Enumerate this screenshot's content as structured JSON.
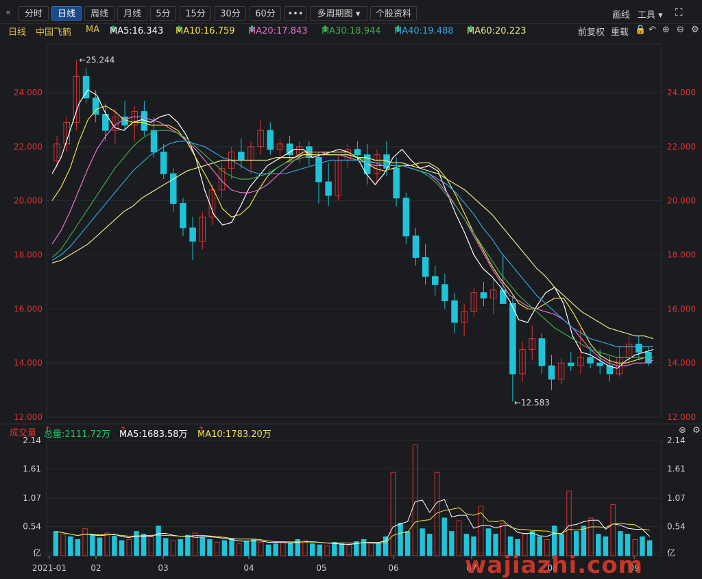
{
  "toolbar": {
    "back_icon": "double-left-chevron",
    "tabs": [
      "分时",
      "日线",
      "周线",
      "月线",
      "5分",
      "15分",
      "30分",
      "60分"
    ],
    "active_tab": "日线",
    "more": "•••",
    "multi_period": "多周期图",
    "stock_info": "个股资料",
    "draw_line": "画线",
    "tools": "工具",
    "fullscreen_icon": "expand-icon"
  },
  "info": {
    "period": "日线",
    "stock_name": "中国飞鹤",
    "ma_label": "MA",
    "ma5": "MA5:16.343",
    "ma10": "MA10:16.759",
    "ma20": "MA20:17.843",
    "ma30": "MA30:18.944",
    "ma40": "MA40:19.488",
    "ma60": "MA60:20.223",
    "adjust": "前复权",
    "overlay": "重载"
  },
  "volume_info": {
    "label": "成交量",
    "total": "总量:2111.72万",
    "ma5": "MA5:1683.58万",
    "ma10": "MA10:1783.20万"
  },
  "colors": {
    "up": "#e0302f",
    "down": "#1fc4d8",
    "ma5": "#ffffff",
    "ma10": "#f5e14a",
    "ma20": "#ee6fd2",
    "ma30": "#3fa84a",
    "ma40": "#2ea6e0",
    "ma60": "#e9e68c",
    "axis_text": "#e03030",
    "watermark": "#e23b2a"
  },
  "watermark": "wajiazhi.com",
  "chart_data": [
    {
      "type": "candlestick",
      "ylim": [
        12,
        25.8
      ],
      "y_ticks": [
        "24.000",
        "22.000",
        "20.000",
        "18.000",
        "16.000",
        "14.000",
        "12.000"
      ],
      "high_label": "25.244",
      "low_label": "12.583",
      "series": [
        {
          "name": "MA5",
          "values": [
            21.0,
            21.6,
            22.6,
            23.6,
            24.1,
            23.9,
            23.2,
            22.7,
            22.6,
            22.9,
            23.0,
            22.9,
            23.1,
            23.2,
            22.9,
            22.4,
            21.6,
            20.4,
            19.5,
            19.1,
            19.2,
            19.8,
            20.5,
            20.9,
            21.3,
            21.5,
            21.7,
            21.9,
            21.9,
            21.6,
            21.7,
            21.8,
            21.9,
            21.8,
            21.6,
            21.0,
            20.6,
            21.0,
            21.6,
            21.9,
            21.5,
            21.2,
            21.3,
            21.1,
            20.3,
            19.5,
            18.8,
            18.0,
            17.5,
            17.2,
            16.8,
            16.3,
            15.6,
            15.5,
            16.1,
            16.6,
            16.8,
            16.2,
            15.0,
            14.4,
            14.3,
            14.1,
            13.9,
            13.8,
            14.1,
            14.3,
            14.4,
            14.5
          ]
        },
        {
          "name": "MA10",
          "values": [
            20.0,
            20.5,
            21.2,
            22.2,
            23.0,
            23.4,
            23.5,
            23.3,
            23.0,
            22.9,
            22.9,
            22.8,
            22.8,
            22.8,
            22.6,
            22.2,
            21.6,
            21.0,
            20.4,
            19.7,
            19.4,
            19.5,
            19.8,
            20.4,
            20.9,
            21.2,
            21.4,
            21.6,
            21.8,
            21.8,
            21.8,
            21.8,
            21.8,
            21.8,
            21.6,
            21.4,
            21.2,
            21.1,
            21.2,
            21.3,
            21.3,
            21.4,
            21.4,
            21.2,
            20.8,
            20.2,
            19.5,
            18.8,
            18.2,
            17.6,
            17.1,
            16.7,
            16.2,
            16.0,
            16.0,
            16.2,
            16.4,
            16.4,
            15.9,
            15.3,
            14.7,
            14.3,
            14.1,
            14.0,
            14.0,
            14.1,
            14.2,
            14.2
          ]
        },
        {
          "name": "MA20",
          "values": [
            18.4,
            18.9,
            19.6,
            20.4,
            21.2,
            21.9,
            22.4,
            22.8,
            23.0,
            23.1,
            23.1,
            23.0,
            22.9,
            22.7,
            22.5,
            22.2,
            21.9,
            21.5,
            21.1,
            20.7,
            20.4,
            20.3,
            20.3,
            20.4,
            20.6,
            20.9,
            21.2,
            21.5,
            21.7,
            21.8,
            21.8,
            21.7,
            21.7,
            21.6,
            21.5,
            21.4,
            21.3,
            21.3,
            21.3,
            21.3,
            21.2,
            21.1,
            21.0,
            20.7,
            20.3,
            19.8,
            19.3,
            18.7,
            18.1,
            17.5,
            17.0,
            16.5,
            16.3,
            16.1,
            16.0,
            15.9,
            15.8,
            15.6,
            15.3,
            14.9,
            14.5,
            14.2,
            14.0,
            13.9,
            13.9,
            14.0,
            14.0,
            14.1
          ]
        },
        {
          "name": "MA30",
          "values": [
            17.9,
            18.2,
            18.7,
            19.2,
            19.7,
            20.2,
            20.7,
            21.2,
            21.6,
            22.0,
            22.3,
            22.5,
            22.6,
            22.6,
            22.5,
            22.3,
            22.0,
            21.7,
            21.4,
            21.1,
            20.9,
            20.8,
            20.8,
            20.9,
            21.0,
            21.2,
            21.4,
            21.5,
            21.6,
            21.7,
            21.7,
            21.7,
            21.7,
            21.7,
            21.6,
            21.5,
            21.4,
            21.4,
            21.3,
            21.3,
            21.2,
            21.1,
            20.9,
            20.6,
            20.2,
            19.8,
            19.3,
            18.8,
            18.3,
            17.8,
            17.3,
            16.9,
            16.5,
            16.2,
            15.9,
            15.6,
            15.3,
            15.1,
            14.9,
            14.7,
            14.5,
            14.4,
            14.3,
            14.2,
            14.2,
            14.2,
            14.2,
            14.2
          ]
        },
        {
          "name": "MA40",
          "values": [
            17.8,
            18.0,
            18.3,
            18.7,
            19.1,
            19.5,
            19.9,
            20.3,
            20.7,
            21.1,
            21.4,
            21.7,
            21.9,
            22.1,
            22.2,
            22.2,
            22.1,
            22.0,
            21.8,
            21.6,
            21.5,
            21.3,
            21.1,
            21.0,
            21.0,
            21.0,
            21.0,
            21.1,
            21.2,
            21.3,
            21.4,
            21.5,
            21.5,
            21.5,
            21.5,
            21.4,
            21.4,
            21.3,
            21.3,
            21.3,
            21.2,
            21.1,
            21.0,
            20.8,
            20.6,
            20.3,
            19.9,
            19.5,
            19.0,
            18.6,
            18.1,
            17.7,
            17.3,
            16.9,
            16.5,
            16.2,
            15.9,
            15.6,
            15.3,
            15.1,
            14.9,
            14.8,
            14.7,
            14.6,
            14.6,
            14.6,
            14.6,
            14.6
          ]
        },
        {
          "name": "MA60",
          "values": [
            17.7,
            17.8,
            18.0,
            18.2,
            18.4,
            18.7,
            19.0,
            19.3,
            19.6,
            19.8,
            20.1,
            20.3,
            20.5,
            20.7,
            20.9,
            21.1,
            21.2,
            21.3,
            21.4,
            21.5,
            21.5,
            21.5,
            21.5,
            21.5,
            21.5,
            21.6,
            21.6,
            21.6,
            21.7,
            21.7,
            21.7,
            21.7,
            21.7,
            21.7,
            21.6,
            21.6,
            21.5,
            21.5,
            21.4,
            21.4,
            21.3,
            21.2,
            21.1,
            21.0,
            20.8,
            20.6,
            20.4,
            20.1,
            19.8,
            19.5,
            19.1,
            18.7,
            18.3,
            17.9,
            17.5,
            17.2,
            16.8,
            16.5,
            16.2,
            15.9,
            15.7,
            15.5,
            15.3,
            15.2,
            15.1,
            15.0,
            15.0,
            14.9
          ]
        }
      ],
      "candles_ohlc": [
        [
          21.5,
          22.4,
          21.2,
          22.1
        ],
        [
          22.1,
          23.1,
          21.8,
          22.9
        ],
        [
          22.9,
          25.2,
          22.6,
          24.6
        ],
        [
          24.6,
          24.9,
          23.6,
          23.8
        ],
        [
          23.8,
          24.1,
          22.9,
          23.2
        ],
        [
          23.2,
          23.6,
          22.2,
          22.6
        ],
        [
          22.6,
          23.4,
          22.1,
          23.1
        ],
        [
          23.1,
          23.7,
          22.6,
          22.8
        ],
        [
          22.8,
          23.5,
          22.2,
          23.3
        ],
        [
          23.3,
          23.7,
          22.4,
          22.6
        ],
        [
          22.6,
          23.1,
          21.6,
          21.8
        ],
        [
          21.8,
          22.1,
          20.8,
          21.0
        ],
        [
          21.0,
          21.2,
          19.6,
          19.9
        ],
        [
          19.9,
          20.1,
          18.7,
          19.0
        ],
        [
          19.0,
          19.4,
          17.8,
          18.5
        ],
        [
          18.5,
          19.6,
          18.2,
          19.4
        ],
        [
          19.4,
          20.6,
          19.1,
          20.4
        ],
        [
          20.4,
          21.4,
          20.1,
          21.2
        ],
        [
          21.2,
          22.0,
          20.8,
          21.8
        ],
        [
          21.8,
          22.3,
          21.2,
          21.5
        ],
        [
          21.5,
          22.2,
          21.0,
          22.0
        ],
        [
          22.0,
          23.0,
          21.7,
          22.6
        ],
        [
          22.6,
          22.9,
          21.7,
          21.9
        ],
        [
          21.9,
          22.3,
          21.5,
          22.1
        ],
        [
          22.1,
          22.4,
          21.5,
          21.7
        ],
        [
          21.7,
          22.2,
          21.4,
          22.0
        ],
        [
          22.0,
          22.2,
          21.3,
          21.6
        ],
        [
          21.6,
          21.8,
          19.9,
          20.7
        ],
        [
          20.7,
          21.4,
          19.8,
          20.2
        ],
        [
          20.2,
          21.7,
          20.0,
          21.5
        ],
        [
          21.5,
          22.1,
          21.2,
          21.9
        ],
        [
          21.9,
          22.2,
          21.5,
          21.7
        ],
        [
          21.7,
          22.1,
          20.6,
          21.0
        ],
        [
          21.0,
          21.9,
          20.6,
          21.7
        ],
        [
          21.7,
          22.2,
          20.9,
          21.2
        ],
        [
          21.2,
          21.6,
          19.8,
          20.1
        ],
        [
          20.1,
          20.3,
          18.4,
          18.7
        ],
        [
          18.7,
          19.0,
          17.6,
          17.9
        ],
        [
          17.9,
          18.4,
          16.9,
          17.2
        ],
        [
          17.2,
          17.6,
          16.5,
          16.9
        ],
        [
          16.9,
          17.3,
          16.0,
          16.3
        ],
        [
          16.3,
          16.6,
          15.1,
          15.5
        ],
        [
          15.5,
          16.2,
          15.0,
          15.9
        ],
        [
          15.9,
          16.8,
          15.7,
          16.6
        ],
        [
          16.6,
          17.0,
          16.1,
          16.4
        ],
        [
          16.4,
          17.1,
          15.8,
          16.7
        ],
        [
          16.7,
          18.0,
          16.4,
          16.2
        ],
        [
          16.2,
          16.5,
          12.58,
          13.6
        ],
        [
          13.6,
          14.8,
          13.3,
          14.5
        ],
        [
          14.5,
          15.4,
          14.1,
          14.9
        ],
        [
          14.9,
          15.1,
          13.6,
          13.9
        ],
        [
          13.9,
          14.3,
          13.0,
          13.4
        ],
        [
          13.4,
          14.2,
          13.2,
          14.0
        ],
        [
          14.0,
          14.4,
          13.7,
          13.9
        ],
        [
          13.9,
          15.3,
          13.6,
          14.2
        ],
        [
          14.2,
          14.6,
          13.8,
          14.0
        ],
        [
          14.0,
          14.5,
          13.6,
          13.9
        ],
        [
          13.9,
          14.3,
          13.3,
          13.6
        ],
        [
          13.6,
          14.6,
          13.5,
          14.2
        ],
        [
          14.2,
          15.0,
          14.0,
          14.7
        ],
        [
          14.7,
          15.0,
          14.1,
          14.4
        ],
        [
          14.4,
          14.6,
          13.9,
          14.0
        ]
      ]
    },
    {
      "type": "bar",
      "y_ticks": [
        "2.14",
        "1.61",
        "1.07",
        "0.54",
        "亿"
      ],
      "x_ticks": [
        "2021-01",
        "02",
        "03",
        "04",
        "05",
        "06",
        "07",
        "08",
        "09"
      ],
      "ylim": [
        0,
        2.14
      ],
      "series": [
        {
          "name": "volume",
          "values": [
            0.45,
            0.4,
            0.35,
            0.3,
            0.5,
            0.38,
            0.33,
            0.42,
            0.36,
            0.28,
            0.3,
            0.45,
            0.4,
            0.35,
            0.55,
            0.32,
            0.28,
            0.3,
            0.38,
            0.42,
            0.35,
            0.3,
            0.25,
            0.28,
            0.32,
            0.22,
            0.27,
            0.3,
            0.25,
            0.2,
            0.22,
            0.26,
            0.24,
            0.3,
            0.28,
            0.22,
            0.2,
            0.18,
            0.25,
            0.22,
            0.2,
            0.26,
            0.3,
            0.24,
            0.22,
            0.35,
            1.55,
            0.6,
            0.45,
            2.06,
            0.5,
            0.4,
            1.55,
            0.7,
            0.45,
            0.65,
            0.4,
            0.35,
            0.92,
            0.5,
            0.4,
            0.6,
            0.35,
            0.3,
            0.4,
            0.45,
            0.35,
            0.3,
            0.55,
            0.4,
            1.2,
            0.45,
            0.55,
            0.7,
            0.4,
            0.35,
            0.95,
            0.45,
            0.4,
            0.3,
            0.35,
            0.28
          ]
        }
      ]
    }
  ]
}
